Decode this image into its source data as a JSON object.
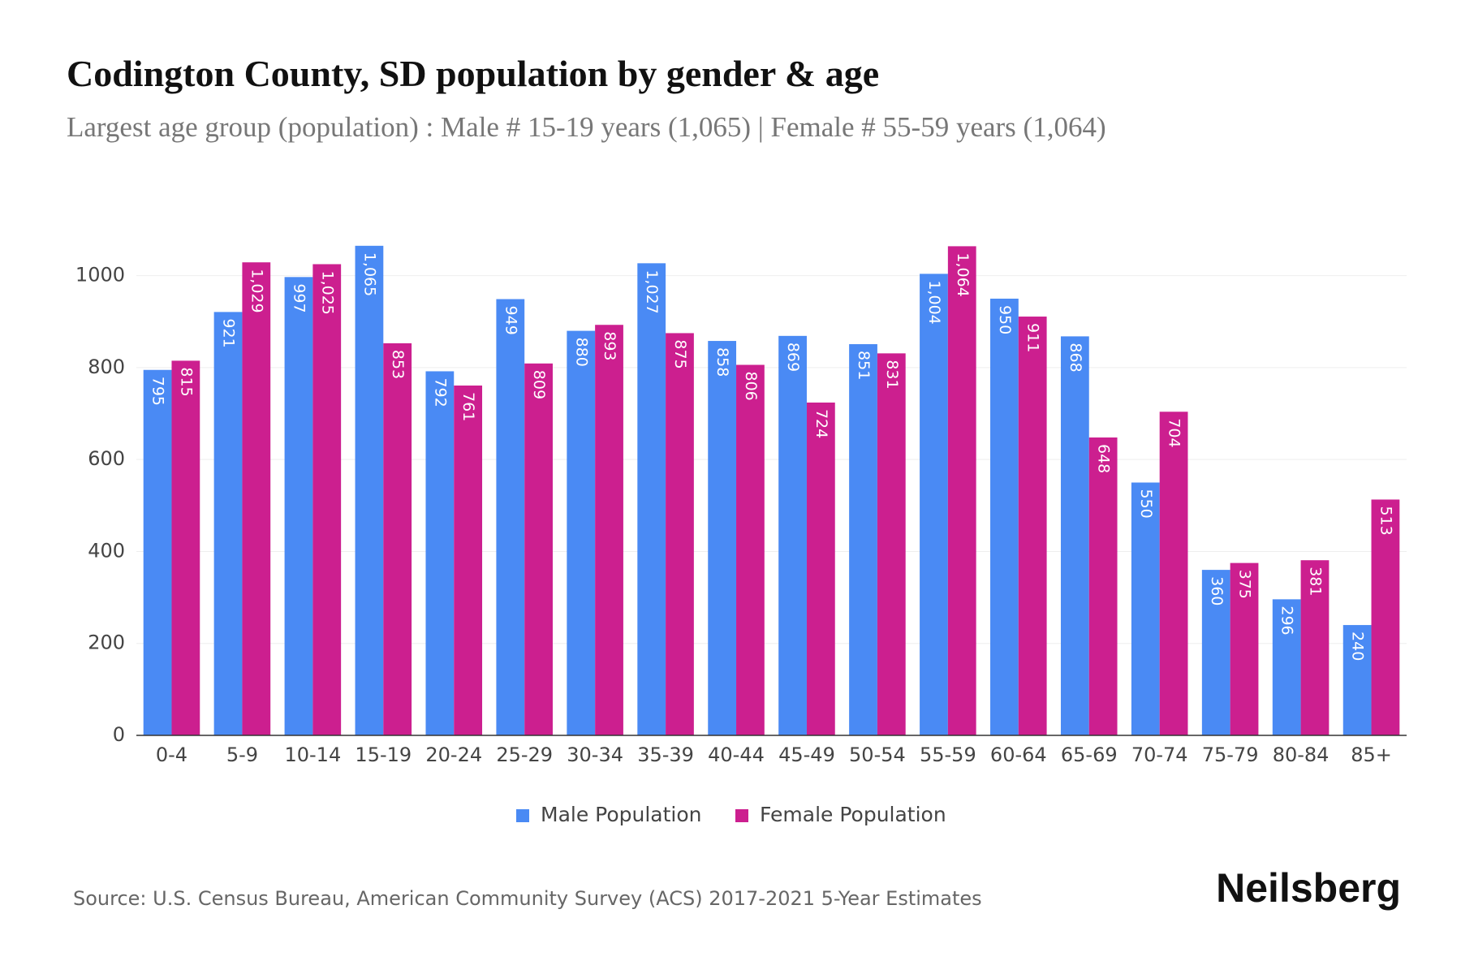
{
  "chart_data": {
    "type": "bar",
    "title": "Codington County, SD population by gender & age",
    "subtitle": "Largest age group (population) : Male # 15-19 years (1,065) | Female # 55-59 years (1,064)",
    "categories": [
      "0-4",
      "5-9",
      "10-14",
      "15-19",
      "20-24",
      "25-29",
      "30-34",
      "35-39",
      "40-44",
      "45-49",
      "50-54",
      "55-59",
      "60-64",
      "65-69",
      "70-74",
      "75-79",
      "80-84",
      "85+"
    ],
    "series": [
      {
        "name": "Male Population",
        "color": "#4a8af4",
        "values": [
          795,
          921,
          997,
          1065,
          792,
          949,
          880,
          1027,
          858,
          869,
          851,
          1004,
          950,
          868,
          550,
          360,
          296,
          240
        ],
        "value_labels": [
          "795",
          "921",
          "997",
          "1,065",
          "792",
          "949",
          "880",
          "1,027",
          "858",
          "869",
          "851",
          "1,004",
          "950",
          "868",
          "550",
          "360",
          "296",
          "240"
        ]
      },
      {
        "name": "Female Population",
        "color": "#cc1f8f",
        "values": [
          815,
          1029,
          1025,
          853,
          761,
          809,
          893,
          875,
          806,
          724,
          831,
          1064,
          911,
          648,
          704,
          375,
          381,
          513
        ],
        "value_labels": [
          "815",
          "1,029",
          "1,025",
          "853",
          "761",
          "809",
          "893",
          "875",
          "806",
          "724",
          "831",
          "1,064",
          "911",
          "648",
          "704",
          "375",
          "381",
          "513"
        ]
      }
    ],
    "ylim": [
      0,
      1100
    ],
    "yticks": [
      0,
      200,
      400,
      600,
      800,
      1000
    ],
    "grid": true,
    "legend": "bottom",
    "source": "Source: U.S. Census Bureau, American Community Survey (ACS) 2017-2021 5-Year Estimates",
    "brand": "Neilsberg"
  }
}
